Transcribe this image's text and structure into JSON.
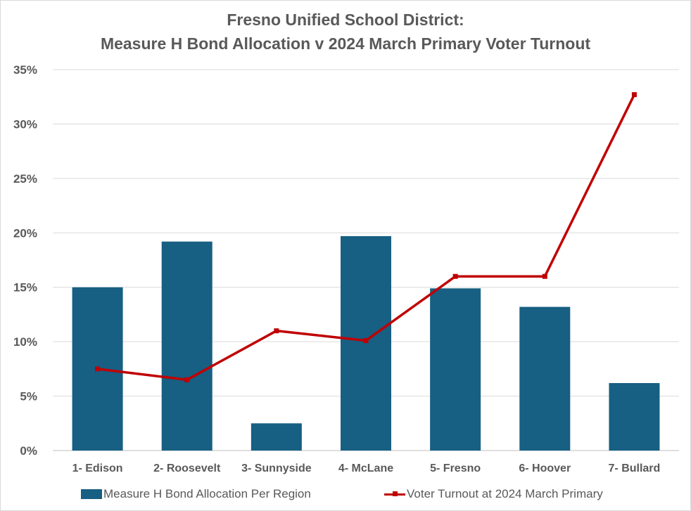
{
  "chart_data": {
    "type": "bar",
    "title_lines": [
      "Fresno Unified School District:",
      "Measure H Bond Allocation v 2024 March Primary Voter Turnout"
    ],
    "categories": [
      "1- Edison",
      "2- Roosevelt",
      "3- Sunnyside",
      "4- McLane",
      "5- Fresno",
      "6- Hoover",
      "7- Bullard"
    ],
    "series": [
      {
        "name": "Measure H Bond Allocation Per Region",
        "type": "bar",
        "color": "#175f83",
        "values": [
          15.0,
          19.2,
          2.5,
          19.7,
          14.9,
          13.2,
          6.2
        ]
      },
      {
        "name": "Voter Turnout at 2024 March Primary",
        "type": "line",
        "color": "#c00000",
        "values": [
          7.5,
          6.5,
          11.0,
          10.1,
          16.0,
          16.0,
          32.7
        ]
      }
    ],
    "yticks": [
      "0%",
      "5%",
      "10%",
      "15%",
      "20%",
      "25%",
      "30%",
      "35%"
    ],
    "ylim": [
      0,
      35
    ],
    "grid": true,
    "legend_position": "bottom"
  }
}
